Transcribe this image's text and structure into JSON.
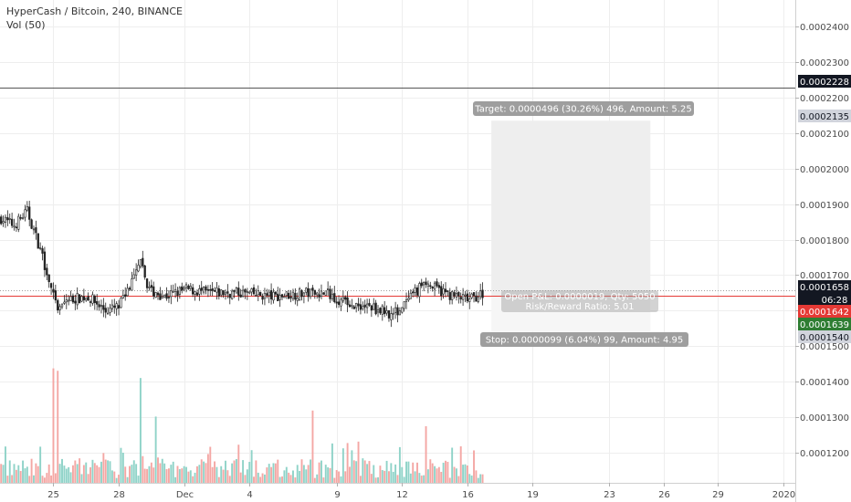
{
  "header": {
    "title": "HyperCash / Bitcoin, 240, BINANCE",
    "volume_label": "Vol (50)"
  },
  "colors": {
    "up": "#26a69a",
    "down": "#ef5350",
    "vol_up": "#8fd3c8",
    "vol_down": "#f4a7a4",
    "grid": "#eeeeee",
    "entry_line": "#e53935",
    "target_zone": "#eeeeee",
    "stop_zone": "#f6f6f6",
    "box_label": "#9e9e9e"
  },
  "chart_data": {
    "type": "candlestick",
    "ylim": [
      0.0001115,
      0.0002475
    ],
    "y_ticks": [
      "0.0001200",
      "0.0001300",
      "0.0001400",
      "0.0001500",
      "0.0001600",
      "0.0001700",
      "0.0001800",
      "0.0001900",
      "0.0002000",
      "0.0002100",
      "0.0002200",
      "0.0002300",
      "0.0002400"
    ],
    "y_tick_values": [
      0.00012,
      0.00013,
      0.00014,
      0.00015,
      0.00016,
      0.00017,
      0.00018,
      0.00019,
      0.0002,
      0.00021,
      0.00022,
      0.00023,
      0.00024
    ],
    "x_ticks": [
      "25",
      "28",
      "Dec",
      "4",
      "9",
      "12",
      "16",
      "19",
      "23",
      "26",
      "29",
      "2020"
    ],
    "x_tick_index": [
      24,
      54,
      84,
      114,
      154,
      184,
      214,
      244,
      279,
      304,
      329,
      359
    ],
    "bar_count": 222,
    "x_slots": 365,
    "price_path": [
      [
        0,
        0.000186
      ],
      [
        6,
        0.000184
      ],
      [
        12,
        0.000188
      ],
      [
        17,
        0.000179
      ],
      [
        22,
        0.000169
      ],
      [
        26,
        0.000159
      ],
      [
        30,
        0.000163
      ],
      [
        40,
        0.000164
      ],
      [
        48,
        0.00016
      ],
      [
        54,
        0.000161
      ],
      [
        60,
        0.000168
      ],
      [
        64,
        0.000173
      ],
      [
        68,
        0.000166
      ],
      [
        75,
        0.000164
      ],
      [
        85,
        0.000166
      ],
      [
        95,
        0.000165
      ],
      [
        110,
        0.000165
      ],
      [
        125,
        0.000164
      ],
      [
        140,
        0.000165
      ],
      [
        150,
        0.000165
      ],
      [
        158,
        0.000162
      ],
      [
        170,
        0.000161
      ],
      [
        180,
        0.000159
      ],
      [
        186,
        0.000162
      ],
      [
        194,
        0.000168
      ],
      [
        200,
        0.000166
      ],
      [
        208,
        0.000164
      ],
      [
        215,
        0.000163
      ],
      [
        221,
        0.000165
      ]
    ],
    "volume_spikes": [
      [
        24,
        0.95
      ],
      [
        26,
        0.93
      ],
      [
        64,
        0.87
      ],
      [
        143,
        0.6
      ],
      [
        195,
        0.47
      ],
      [
        71,
        0.55
      ],
      [
        18,
        0.3
      ],
      [
        56,
        0.25
      ],
      [
        161,
        0.27
      ]
    ],
    "last_price": "0.0001658",
    "last_price_value": 0.0001658,
    "countdown": "06:28",
    "entry_price": "0.0001642",
    "entry_price_value": 0.0001642,
    "bid_price": "0.0001639",
    "target_price": "0.0002135",
    "target_price_value": 0.0002135,
    "stop_price": "0.0001540",
    "stop_price_value": 0.000154,
    "hline_price": "0.0002228",
    "hline_price_value": 0.0002228,
    "position": {
      "target_label": "Target: 0.0000496 (30.26%) 496, Amount: 5.25",
      "stop_label": "Stop: 0.0000099 (6.04%) 99, Amount: 4.95",
      "pnl_label": "Open P&L: 0.0000019, Qty: 5050",
      "ratio_label": "Risk/Reward Ratio: 5.01",
      "start_index": 225,
      "end_index": 298
    }
  }
}
